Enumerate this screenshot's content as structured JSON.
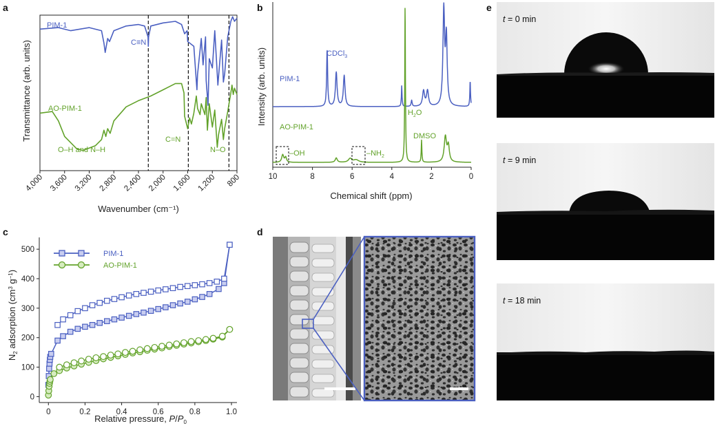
{
  "colors": {
    "pim1": "#4a5fc1",
    "aopim1": "#62a22a",
    "axis": "#222222"
  },
  "panels": {
    "a": "a",
    "b": "b",
    "c": "c",
    "d": "d",
    "e": "e"
  },
  "chart_data": [
    {
      "panel": "a",
      "type": "line",
      "xlabel": "Wavenumber (cm⁻¹)",
      "ylabel": "Transmittance (arb. units)",
      "xlim": [
        4000,
        800
      ],
      "x_reversed": true,
      "xticks": [
        "4,000",
        "3,600",
        "3,200",
        "2,800",
        "2,400",
        "2,000",
        "1,600",
        "1,200",
        "800"
      ],
      "xtick_values": [
        4000,
        3600,
        3200,
        2800,
        2400,
        2000,
        1600,
        1200,
        800
      ],
      "dashed_lines_at": [
        2240,
        1590,
        930
      ],
      "series": [
        {
          "name": "PIM-1",
          "x": [
            4000,
            3700,
            3500,
            3200,
            3000,
            2960,
            2940,
            2900,
            2870,
            2800,
            2600,
            2400,
            2300,
            2245,
            2240,
            2235,
            2200,
            2000,
            1800,
            1700,
            1650,
            1610,
            1600,
            1500,
            1450,
            1440,
            1380,
            1350,
            1310,
            1300,
            1270,
            1250,
            1200,
            1160,
            1110,
            1100,
            1050,
            1020,
            1000,
            950,
            900,
            870,
            840,
            800
          ],
          "y": [
            0.91,
            0.92,
            0.9,
            0.92,
            0.9,
            0.82,
            0.76,
            0.85,
            0.83,
            0.9,
            0.93,
            0.94,
            0.93,
            0.86,
            0.8,
            0.86,
            0.93,
            0.95,
            0.96,
            0.94,
            0.88,
            0.9,
            0.83,
            0.8,
            0.52,
            0.62,
            0.85,
            0.68,
            0.86,
            0.58,
            0.42,
            0.72,
            0.66,
            0.9,
            0.55,
            0.6,
            0.84,
            0.57,
            0.62,
            0.86,
            0.96,
            0.99,
            0.96,
            0.98
          ]
        },
        {
          "name": "AO-PIM-1",
          "x": [
            4000,
            3800,
            3700,
            3600,
            3400,
            3300,
            3100,
            3000,
            2960,
            2930,
            2900,
            2860,
            2800,
            2600,
            2400,
            2200,
            2000,
            1800,
            1700,
            1660,
            1650,
            1600,
            1570,
            1540,
            1500,
            1460,
            1440,
            1400,
            1380,
            1320,
            1300,
            1280,
            1250,
            1200,
            1160,
            1120,
            1100,
            1050,
            1020,
            1000,
            950,
            900,
            880,
            860,
            840,
            800
          ],
          "y": [
            0.37,
            0.38,
            0.32,
            0.22,
            0.14,
            0.13,
            0.16,
            0.2,
            0.26,
            0.22,
            0.27,
            0.24,
            0.32,
            0.41,
            0.45,
            0.48,
            0.52,
            0.56,
            0.56,
            0.5,
            0.35,
            0.27,
            0.34,
            0.3,
            0.37,
            0.48,
            0.4,
            0.36,
            0.43,
            0.36,
            0.47,
            0.26,
            0.43,
            0.28,
            0.39,
            0.15,
            0.23,
            0.33,
            0.2,
            0.27,
            0.38,
            0.5,
            0.55,
            0.49,
            0.53,
            0.49
          ]
        }
      ],
      "annotations": [
        {
          "text": "PIM-1",
          "color": "pim1"
        },
        {
          "text": "C≡N",
          "color": "pim1"
        },
        {
          "text": "AO-PIM-1",
          "color": "aopim1"
        },
        {
          "text": "O–H and N–H",
          "color": "aopim1"
        },
        {
          "text": "C=N",
          "color": "aopim1"
        },
        {
          "text": "N–O",
          "color": "aopim1"
        }
      ]
    },
    {
      "panel": "b",
      "type": "line",
      "xlabel": "Chemical shift (ppm)",
      "ylabel": "Intensity (arb. units)",
      "xlim": [
        10,
        0
      ],
      "x_reversed": true,
      "xticks": [
        "10",
        "8",
        "6",
        "4",
        "2",
        "0"
      ],
      "xtick_values": [
        10,
        8,
        6,
        4,
        2,
        0
      ],
      "series": [
        {
          "name": "PIM-1",
          "peaks": [
            {
              "ppm": 7.26,
              "height": 0.55,
              "width": 0.03
            },
            {
              "ppm": 6.8,
              "height": 0.33,
              "width": 0.05
            },
            {
              "ppm": 6.4,
              "height": 0.3,
              "width": 0.05
            },
            {
              "ppm": 3.5,
              "height": 0.2,
              "width": 0.02
            },
            {
              "ppm": 3.0,
              "height": 0.06,
              "width": 0.03
            },
            {
              "ppm": 2.4,
              "height": 0.15,
              "width": 0.06
            },
            {
              "ppm": 2.2,
              "height": 0.15,
              "width": 0.06
            },
            {
              "ppm": 1.38,
              "height": 0.92,
              "width": 0.05
            },
            {
              "ppm": 1.25,
              "height": 0.65,
              "width": 0.05
            },
            {
              "ppm": 0.05,
              "height": 0.25,
              "width": 0.02
            }
          ]
        },
        {
          "name": "AO-PIM-1",
          "peaks": [
            {
              "ppm": 9.5,
              "height": 0.12,
              "width": 0.06
            },
            {
              "ppm": 9.35,
              "height": 0.08,
              "width": 0.05
            },
            {
              "ppm": 6.8,
              "height": 0.07,
              "width": 0.06
            },
            {
              "ppm": 6.1,
              "height": 0.06,
              "width": 0.1
            },
            {
              "ppm": 5.8,
              "height": 0.04,
              "width": 0.15
            },
            {
              "ppm": 3.33,
              "height": 2.5,
              "width": 0.02
            },
            {
              "ppm": 2.5,
              "height": 0.35,
              "width": 0.02
            },
            {
              "ppm": 1.3,
              "height": 0.4,
              "width": 0.07
            },
            {
              "ppm": 1.15,
              "height": 0.25,
              "width": 0.06
            }
          ]
        }
      ],
      "annotations": [
        {
          "text": "CDCl",
          "sub": "3",
          "color": "pim1"
        },
        {
          "text": "PIM-1",
          "color": "pim1"
        },
        {
          "text": "H",
          "sub": "2",
          "tail": "O",
          "color": "aopim1"
        },
        {
          "text": "AO-PIM-1",
          "color": "aopim1"
        },
        {
          "text": "DMSO",
          "color": "aopim1"
        },
        {
          "text": "–OH",
          "color": "aopim1"
        },
        {
          "text": "–NH",
          "sub": "2",
          "color": "aopim1"
        }
      ]
    },
    {
      "panel": "c",
      "type": "scatter",
      "xlabel": "Relative pressure, P/P₀",
      "ylabel": "N₂ adsorption (cm³ g⁻¹)",
      "xlim": [
        -0.05,
        1.03
      ],
      "ylim": [
        -20,
        540
      ],
      "xticks": [
        "0",
        "0.2",
        "0.4",
        "0.6",
        "0.8",
        "1.0"
      ],
      "xtick_values": [
        0,
        0.2,
        0.4,
        0.6,
        0.8,
        1.0
      ],
      "yticks": [
        "0",
        "100",
        "200",
        "300",
        "400",
        "500"
      ],
      "ytick_values": [
        0,
        100,
        200,
        300,
        400,
        500
      ],
      "legend": "top-left",
      "series": [
        {
          "name": "PIM-1",
          "marker": "square",
          "adsorption": {
            "x": [
              0.0,
              0.002,
              0.004,
              0.006,
              0.008,
              0.01,
              0.015,
              0.05,
              0.08,
              0.12,
              0.16,
              0.2,
              0.24,
              0.28,
              0.32,
              0.36,
              0.4,
              0.44,
              0.48,
              0.52,
              0.56,
              0.6,
              0.64,
              0.68,
              0.72,
              0.76,
              0.8,
              0.84,
              0.88,
              0.93,
              0.96,
              0.99
            ],
            "y": [
              40,
              70,
              95,
              112,
              125,
              135,
              145,
              190,
              205,
              220,
              230,
              237,
              243,
              250,
              256,
              262,
              268,
              274,
              280,
              285,
              291,
              297,
              303,
              310,
              316,
              322,
              330,
              338,
              348,
              365,
              385,
              515
            ]
          },
          "desorption": {
            "x": [
              0.99,
              0.96,
              0.92,
              0.88,
              0.84,
              0.8,
              0.76,
              0.72,
              0.68,
              0.64,
              0.6,
              0.56,
              0.52,
              0.48,
              0.44,
              0.4,
              0.36,
              0.32,
              0.28,
              0.24,
              0.2,
              0.16,
              0.12,
              0.08,
              0.05
            ],
            "y": [
              515,
              400,
              390,
              385,
              381,
              378,
              375,
              372,
              368,
              364,
              360,
              356,
              352,
              348,
              343,
              337,
              331,
              325,
              318,
              310,
              300,
              290,
              276,
              262,
              243
            ]
          }
        },
        {
          "name": "AO-PIM-1",
          "marker": "circle",
          "adsorption": {
            "x": [
              0.0,
              0.002,
              0.004,
              0.006,
              0.008,
              0.01,
              0.03,
              0.06,
              0.1,
              0.14,
              0.18,
              0.22,
              0.26,
              0.3,
              0.34,
              0.38,
              0.42,
              0.46,
              0.5,
              0.54,
              0.58,
              0.62,
              0.66,
              0.7,
              0.74,
              0.78,
              0.82,
              0.86,
              0.9,
              0.95,
              0.99
            ],
            "y": [
              5,
              20,
              35,
              45,
              52,
              58,
              78,
              88,
              97,
              104,
              110,
              116,
              122,
              128,
              133,
              138,
              143,
              148,
              152,
              157,
              161,
              165,
              170,
              174,
              178,
              182,
              186,
              190,
              195,
              202,
              228
            ]
          },
          "desorption": {
            "x": [
              0.99,
              0.95,
              0.9,
              0.86,
              0.82,
              0.78,
              0.74,
              0.7,
              0.66,
              0.62,
              0.58,
              0.54,
              0.5,
              0.46,
              0.42,
              0.38,
              0.34,
              0.3,
              0.26,
              0.22,
              0.18,
              0.14,
              0.1,
              0.06
            ],
            "y": [
              228,
              205,
              198,
              194,
              190,
              187,
              183,
              179,
              175,
              171,
              167,
              163,
              159,
              154,
              150,
              145,
              141,
              136,
              132,
              127,
              121,
              115,
              108,
              100
            ]
          }
        }
      ]
    }
  ],
  "time_labels": [
    {
      "t": "t",
      "eq": " = 0 min"
    },
    {
      "t": "t",
      "eq": " = 9 min"
    },
    {
      "t": "t",
      "eq": " = 18 min"
    }
  ]
}
